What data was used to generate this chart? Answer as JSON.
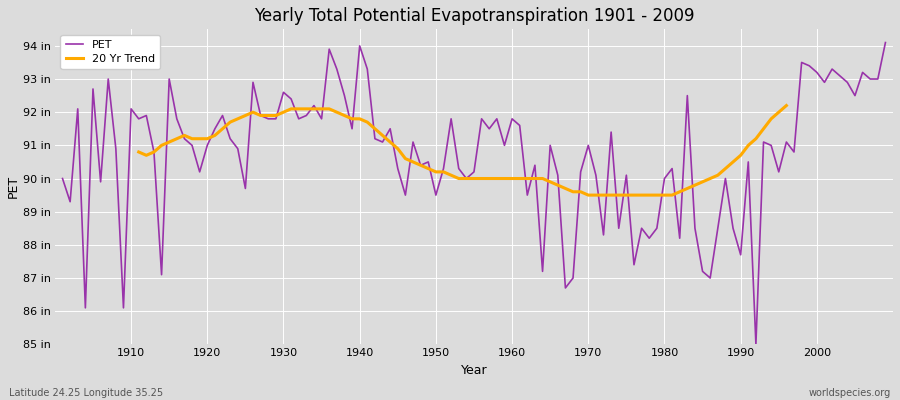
{
  "title": "Yearly Total Potential Evapotranspiration 1901 - 2009",
  "ylabel": "PET",
  "xlabel": "Year",
  "subtitle_left": "Latitude 24.25 Longitude 35.25",
  "subtitle_right": "worldspecies.org",
  "background_color": "#dcdcdc",
  "plot_bg_color": "#dcdcdc",
  "pet_color": "#9933aa",
  "trend_color": "#ffaa00",
  "ylim": [
    85.0,
    94.5
  ],
  "yticks": [
    85,
    86,
    87,
    88,
    89,
    90,
    91,
    92,
    93,
    94
  ],
  "ytick_labels": [
    "85 in",
    "86 in",
    "87 in",
    "88 in",
    "89 in",
    "90 in",
    "91 in",
    "92 in",
    "93 in",
    "94 in"
  ],
  "xticks": [
    1910,
    1920,
    1930,
    1940,
    1950,
    1960,
    1970,
    1980,
    1990,
    2000
  ],
  "years": [
    1901,
    1902,
    1903,
    1904,
    1905,
    1906,
    1907,
    1908,
    1909,
    1910,
    1911,
    1912,
    1913,
    1914,
    1915,
    1916,
    1917,
    1918,
    1919,
    1920,
    1921,
    1922,
    1923,
    1924,
    1925,
    1926,
    1927,
    1928,
    1929,
    1930,
    1931,
    1932,
    1933,
    1934,
    1935,
    1936,
    1937,
    1938,
    1939,
    1940,
    1941,
    1942,
    1943,
    1944,
    1945,
    1946,
    1947,
    1948,
    1949,
    1950,
    1951,
    1952,
    1953,
    1954,
    1955,
    1956,
    1957,
    1958,
    1959,
    1960,
    1961,
    1962,
    1963,
    1964,
    1965,
    1966,
    1967,
    1968,
    1969,
    1970,
    1971,
    1972,
    1973,
    1974,
    1975,
    1976,
    1977,
    1978,
    1979,
    1980,
    1981,
    1982,
    1983,
    1984,
    1985,
    1986,
    1987,
    1988,
    1989,
    1990,
    1991,
    1992,
    1993,
    1994,
    1995,
    1996,
    1997,
    1998,
    1999,
    2000,
    2001,
    2002,
    2003,
    2004,
    2005,
    2006,
    2007,
    2008,
    2009
  ],
  "pet_values": [
    90.0,
    89.3,
    92.1,
    86.1,
    92.7,
    89.9,
    93.0,
    90.9,
    86.1,
    92.1,
    91.8,
    91.9,
    90.8,
    87.1,
    93.0,
    91.8,
    91.2,
    91.0,
    90.2,
    91.0,
    91.5,
    91.9,
    91.2,
    90.9,
    89.7,
    92.9,
    91.9,
    91.8,
    91.8,
    92.6,
    92.4,
    91.8,
    91.9,
    92.2,
    91.8,
    93.9,
    93.3,
    92.5,
    91.5,
    94.0,
    93.3,
    91.2,
    91.1,
    91.5,
    90.3,
    89.5,
    91.1,
    90.4,
    90.5,
    89.5,
    90.3,
    91.8,
    90.3,
    90.0,
    90.2,
    91.8,
    91.5,
    91.8,
    91.0,
    91.8,
    91.6,
    89.5,
    90.4,
    87.2,
    91.0,
    90.1,
    86.7,
    87.0,
    90.2,
    91.0,
    90.1,
    88.3,
    91.4,
    88.5,
    90.1,
    87.4,
    88.5,
    88.2,
    88.5,
    90.0,
    90.3,
    88.2,
    92.5,
    88.5,
    87.2,
    87.0,
    88.5,
    90.0,
    88.5,
    87.7,
    90.5,
    85.0,
    91.1,
    91.0,
    90.2,
    91.1,
    90.8,
    93.5,
    93.4,
    93.2,
    92.9,
    93.3,
    93.1,
    92.9,
    92.5,
    93.2,
    93.0,
    93.0,
    94.1
  ],
  "trend_values": [
    null,
    null,
    null,
    null,
    null,
    null,
    null,
    null,
    null,
    null,
    90.8,
    90.7,
    90.8,
    91.0,
    91.1,
    91.2,
    91.3,
    91.2,
    91.2,
    91.2,
    91.3,
    91.5,
    91.7,
    91.8,
    91.9,
    92.0,
    91.9,
    91.9,
    91.9,
    92.0,
    92.1,
    92.1,
    92.1,
    92.1,
    92.1,
    92.1,
    92.0,
    91.9,
    91.8,
    91.8,
    91.7,
    91.5,
    91.3,
    91.1,
    90.9,
    90.6,
    90.5,
    90.4,
    90.3,
    90.2,
    90.2,
    90.1,
    90.0,
    90.0,
    90.0,
    90.0,
    90.0,
    90.0,
    90.0,
    90.0,
    90.0,
    90.0,
    90.0,
    90.0,
    89.9,
    89.8,
    89.7,
    89.6,
    89.6,
    89.5,
    89.5,
    89.5,
    89.5,
    89.5,
    89.5,
    89.5,
    89.5,
    89.5,
    89.5,
    89.5,
    89.5,
    89.6,
    89.7,
    89.8,
    89.9,
    90.0,
    90.1,
    90.3,
    90.5,
    90.7,
    91.0,
    91.2,
    91.5,
    91.8,
    92.0,
    92.2,
    null,
    null,
    null,
    null,
    null,
    null,
    null,
    null,
    null,
    null,
    null,
    null,
    null
  ]
}
